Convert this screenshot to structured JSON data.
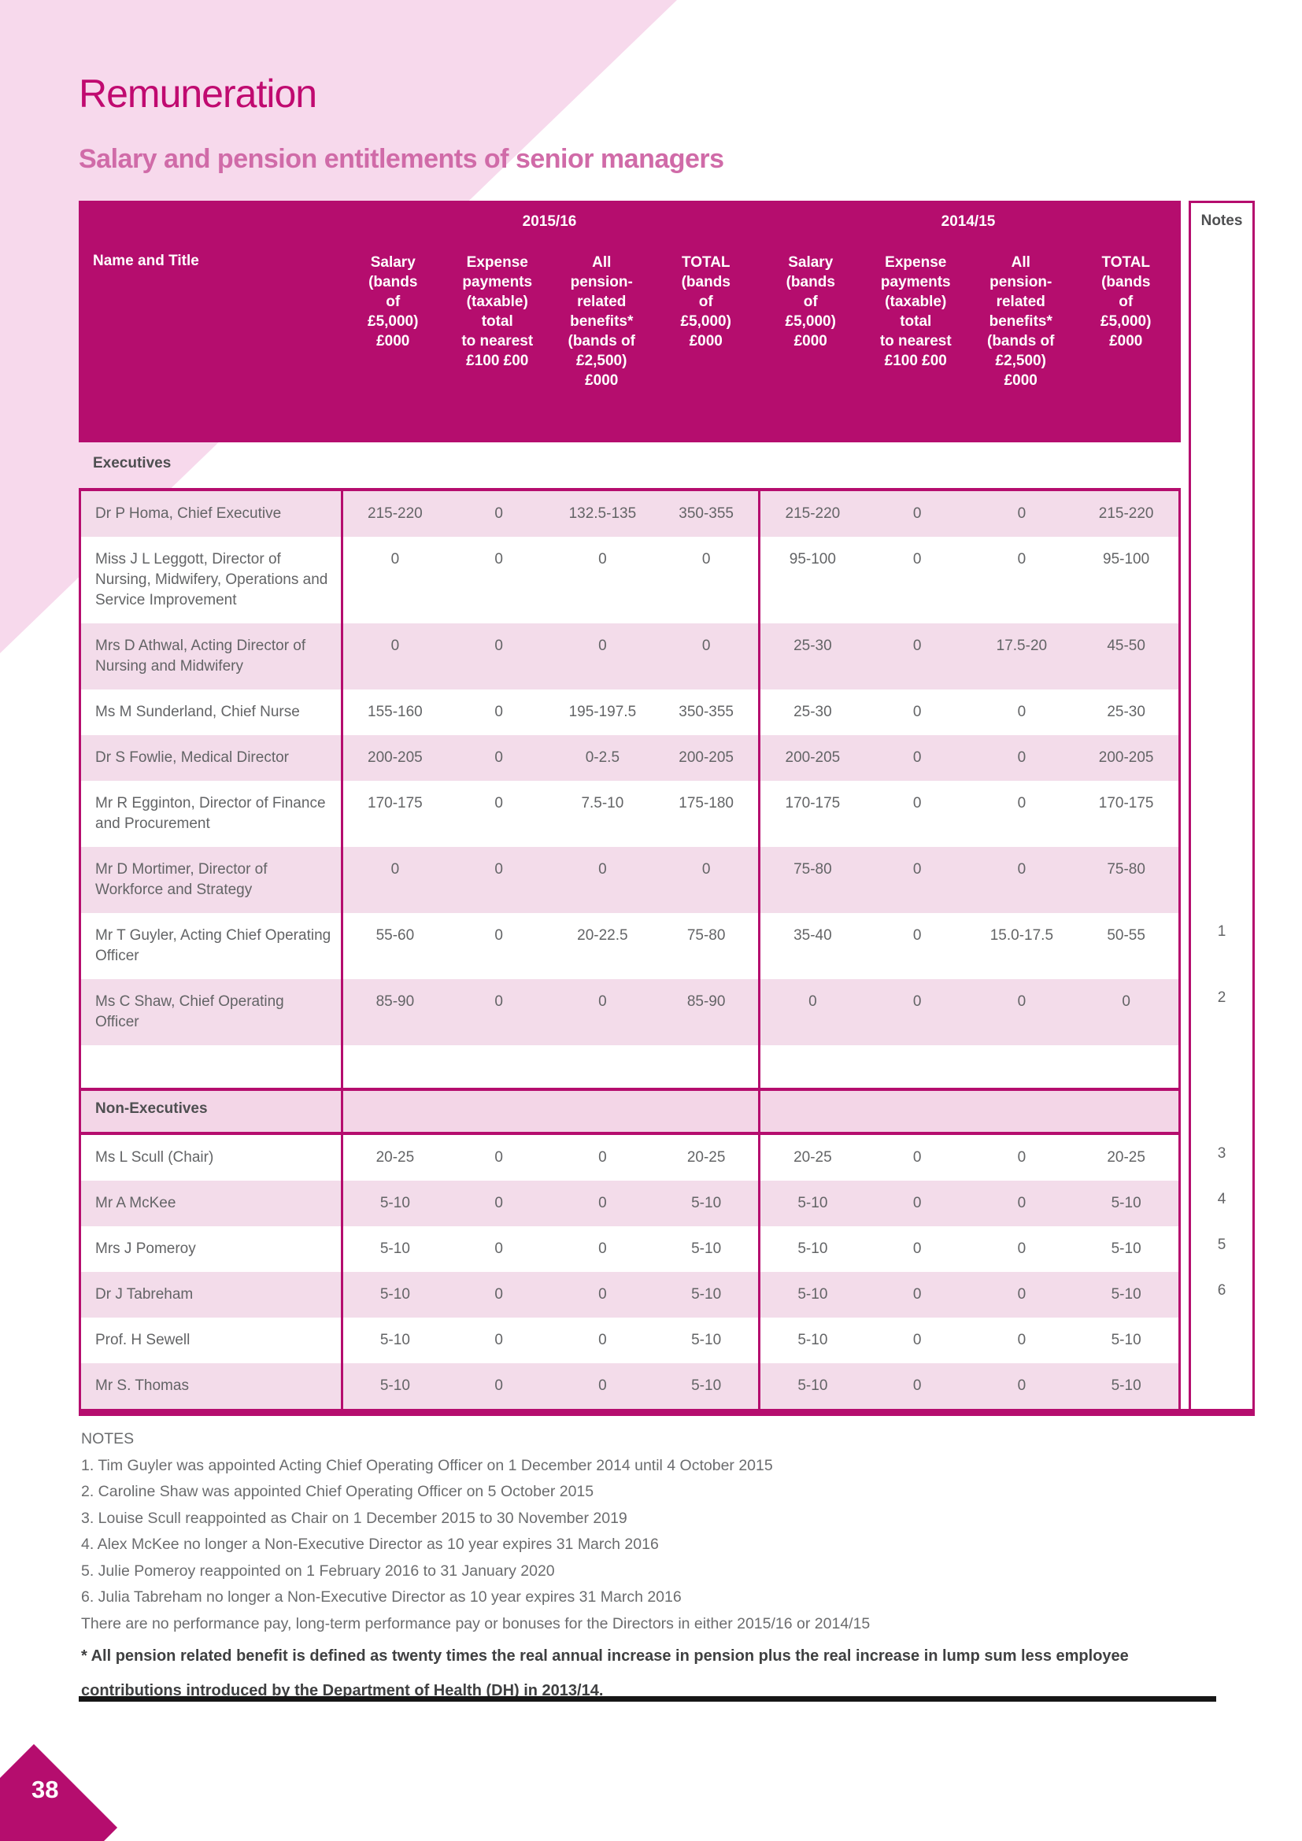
{
  "page": {
    "title": "Remuneration",
    "subtitle": "Salary and pension entitlements of senior managers",
    "page_number": "38"
  },
  "table": {
    "period_2016": "2015/16",
    "period_2015": "2014/15",
    "notes_header": "Notes",
    "name_header": "Name and Title",
    "column_headers": [
      "Salary\n(bands\nof\n£5,000)\n£000",
      "Expense\npayments\n(taxable)\ntotal\nto nearest\n£100 £00",
      "All\npension-\nrelated\nbenefits*\n(bands of\n£2,500)\n£000",
      "TOTAL\n(bands\nof\n£5,000)\n£000"
    ],
    "sections": [
      {
        "label": "Executives",
        "rows": [
          {
            "name": "Dr P Homa, Chief Executive",
            "y2016": [
              "215-220",
              "0",
              "132.5-135",
              "350-355"
            ],
            "y2015": [
              "215-220",
              "0",
              "0",
              "215-220"
            ],
            "note": ""
          },
          {
            "name": "Miss J L Leggott, Director of Nursing, Midwifery, Operations and Service Improvement",
            "y2016": [
              "0",
              "0",
              "0",
              "0"
            ],
            "y2015": [
              "95-100",
              "0",
              "0",
              "95-100"
            ],
            "note": ""
          },
          {
            "name": "Mrs D Athwal, Acting Director of Nursing and Midwifery",
            "y2016": [
              "0",
              "0",
              "0",
              "0"
            ],
            "y2015": [
              "25-30",
              "0",
              "17.5-20",
              "45-50"
            ],
            "note": ""
          },
          {
            "name": "Ms M Sunderland, Chief Nurse",
            "y2016": [
              "155-160",
              "0",
              "195-197.5",
              "350-355"
            ],
            "y2015": [
              "25-30",
              "0",
              "0",
              "25-30"
            ],
            "note": ""
          },
          {
            "name": "Dr S Fowlie, Medical Director",
            "y2016": [
              "200-205",
              "0",
              "0-2.5",
              "200-205"
            ],
            "y2015": [
              "200-205",
              "0",
              "0",
              "200-205"
            ],
            "note": ""
          },
          {
            "name": "Mr R Egginton, Director of Finance and Procurement",
            "y2016": [
              "170-175",
              "0",
              "7.5-10",
              "175-180"
            ],
            "y2015": [
              "170-175",
              "0",
              "0",
              "170-175"
            ],
            "note": ""
          },
          {
            "name": "Mr D Mortimer, Director of Workforce and Strategy",
            "y2016": [
              "0",
              "0",
              "0",
              "0"
            ],
            "y2015": [
              "75-80",
              "0",
              "0",
              "75-80"
            ],
            "note": ""
          },
          {
            "name": "Mr T Guyler, Acting Chief Operating Officer",
            "y2016": [
              "55-60",
              "0",
              "20-22.5",
              "75-80"
            ],
            "y2015": [
              "35-40",
              "0",
              "15.0-17.5",
              "50-55"
            ],
            "note": "1"
          },
          {
            "name": "Ms C Shaw, Chief Operating Officer",
            "y2016": [
              "85-90",
              "0",
              "0",
              "85-90"
            ],
            "y2015": [
              "0",
              "0",
              "0",
              "0"
            ],
            "note": "2"
          }
        ]
      },
      {
        "label": "Non-Executives",
        "rows": [
          {
            "name": "Ms L Scull (Chair)",
            "y2016": [
              "20-25",
              "0",
              "0",
              "20-25"
            ],
            "y2015": [
              "20-25",
              "0",
              "0",
              "20-25"
            ],
            "note": "3"
          },
          {
            "name": "Mr A McKee",
            "y2016": [
              "5-10",
              "0",
              "0",
              "5-10"
            ],
            "y2015": [
              "5-10",
              "0",
              "0",
              "5-10"
            ],
            "note": "4"
          },
          {
            "name": "Mrs J Pomeroy",
            "y2016": [
              "5-10",
              "0",
              "0",
              "5-10"
            ],
            "y2015": [
              "5-10",
              "0",
              "0",
              "5-10"
            ],
            "note": "5"
          },
          {
            "name": "Dr J Tabreham",
            "y2016": [
              "5-10",
              "0",
              "0",
              "5-10"
            ],
            "y2015": [
              "5-10",
              "0",
              "0",
              "5-10"
            ],
            "note": "6"
          },
          {
            "name": "Prof. H Sewell",
            "y2016": [
              "5-10",
              "0",
              "0",
              "5-10"
            ],
            "y2015": [
              "5-10",
              "0",
              "0",
              "5-10"
            ],
            "note": ""
          },
          {
            "name": "Mr S. Thomas",
            "y2016": [
              "5-10",
              "0",
              "0",
              "5-10"
            ],
            "y2015": [
              "5-10",
              "0",
              "0",
              "5-10"
            ],
            "note": ""
          }
        ]
      }
    ]
  },
  "notes": {
    "heading": "NOTES",
    "items": [
      "1. Tim Guyler was appointed Acting Chief Operating Officer on 1 December 2014 until 4 October 2015",
      "2. Caroline Shaw was appointed Chief Operating Officer on 5 October 2015",
      "3. Louise Scull  reappointed as Chair on 1 December 2015 to 30 November 2019",
      "4. Alex McKee no longer a Non-Executive Director as 10 year expires 31 March 2016",
      "5. Julie Pomeroy reappointed on 1 February 2016 to 31 January 2020",
      "6. Julia Tabreham no longer a Non-Executive Director as 10 year expires 31 March 2016",
      "There are no performance pay, long-term performance pay or bonuses for the Directors in either 2015/16 or 2014/15"
    ],
    "asterisk_note": "* All pension related benefit is defined as twenty times the real annual increase in pension plus the real increase in lump sum less employee\ncontributions introduced by the Department of Health (DH) in 2013/14."
  }
}
